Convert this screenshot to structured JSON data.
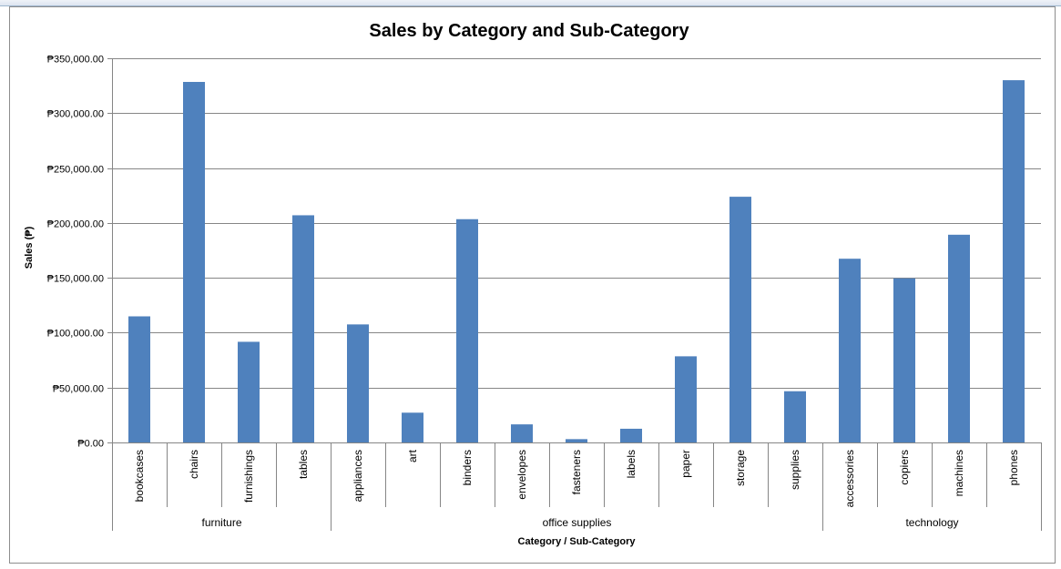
{
  "chart_data": {
    "type": "bar",
    "title": "Sales by Category and Sub-Category",
    "ylabel": "Sales (₱)",
    "xlabel": "Category / Sub-Category",
    "ylim": [
      0,
      350000
    ],
    "ytick_step": 50000,
    "ytick_labels": [
      "₱0.00",
      "₱50,000.00",
      "₱100,000.00",
      "₱150,000.00",
      "₱200,000.00",
      "₱250,000.00",
      "₱300,000.00",
      "₱350,000.00"
    ],
    "grid": true,
    "legend": "none",
    "bar_color": "#4f81bd",
    "groups": [
      {
        "name": "furniture",
        "categories": [
          "bookcases",
          "chairs",
          "furnishings",
          "tables"
        ]
      },
      {
        "name": "office supplies",
        "categories": [
          "appliances",
          "art",
          "binders",
          "envelopes",
          "fasteners",
          "labels",
          "paper",
          "storage",
          "supplies"
        ]
      },
      {
        "name": "technology",
        "categories": [
          "accessories",
          "copiers",
          "machines",
          "phones"
        ]
      }
    ],
    "categories": [
      "bookcases",
      "chairs",
      "furnishings",
      "tables",
      "appliances",
      "art",
      "binders",
      "envelopes",
      "fasteners",
      "labels",
      "paper",
      "storage",
      "supplies",
      "accessories",
      "copiers",
      "machines",
      "phones"
    ],
    "values": [
      114880,
      328450,
      91700,
      206970,
      107530,
      27120,
      203410,
      16480,
      3020,
      12490,
      78480,
      223840,
      46670,
      167380,
      149530,
      189240,
      330010
    ]
  }
}
